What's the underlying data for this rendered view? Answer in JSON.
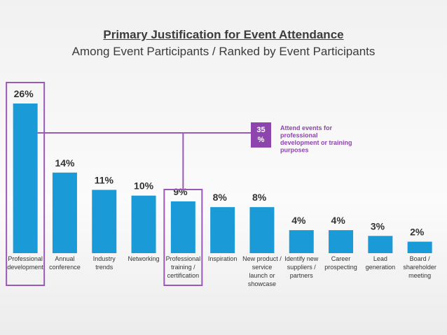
{
  "header": {
    "title": "Primary Justification for Event Attendance",
    "subtitle": "Among Event Participants / Ranked by Event Participants"
  },
  "colors": {
    "bar": "#1a9bd7",
    "highlight": "#9b59b6",
    "badge": "#8e44ad"
  },
  "chart_data": {
    "type": "bar",
    "title": "Primary Justification for Event Attendance",
    "subtitle": "Among Event Participants / Ranked by Event Participants",
    "unit": "%",
    "categories": [
      [
        "Professional",
        "development"
      ],
      [
        "Annual",
        "conference"
      ],
      [
        "Industry",
        "trends"
      ],
      [
        "Networking"
      ],
      [
        "Professional",
        "training /",
        "certification"
      ],
      [
        "Inspiration"
      ],
      [
        "New product /",
        "service",
        "launch or",
        "showcase"
      ],
      [
        "Identify new",
        "suppliers /",
        "partners"
      ],
      [
        "Career",
        "prospecting"
      ],
      [
        "Lead",
        "generation"
      ],
      [
        "Board /",
        "shareholder",
        "meeting"
      ]
    ],
    "values": [
      26,
      14,
      11,
      10,
      9,
      8,
      8,
      4,
      4,
      3,
      2
    ],
    "data_labels": [
      "26%",
      "14%",
      "11%",
      "10%",
      "9%",
      "8%",
      "8%",
      "4%",
      "4%",
      "3%",
      "2%"
    ],
    "highlighted_categories": [
      0,
      4
    ],
    "annotation": {
      "badge_lines": [
        "35",
        "%"
      ],
      "text_lines": [
        "Attend events for",
        "professional",
        "development or training",
        "purposes"
      ]
    }
  }
}
